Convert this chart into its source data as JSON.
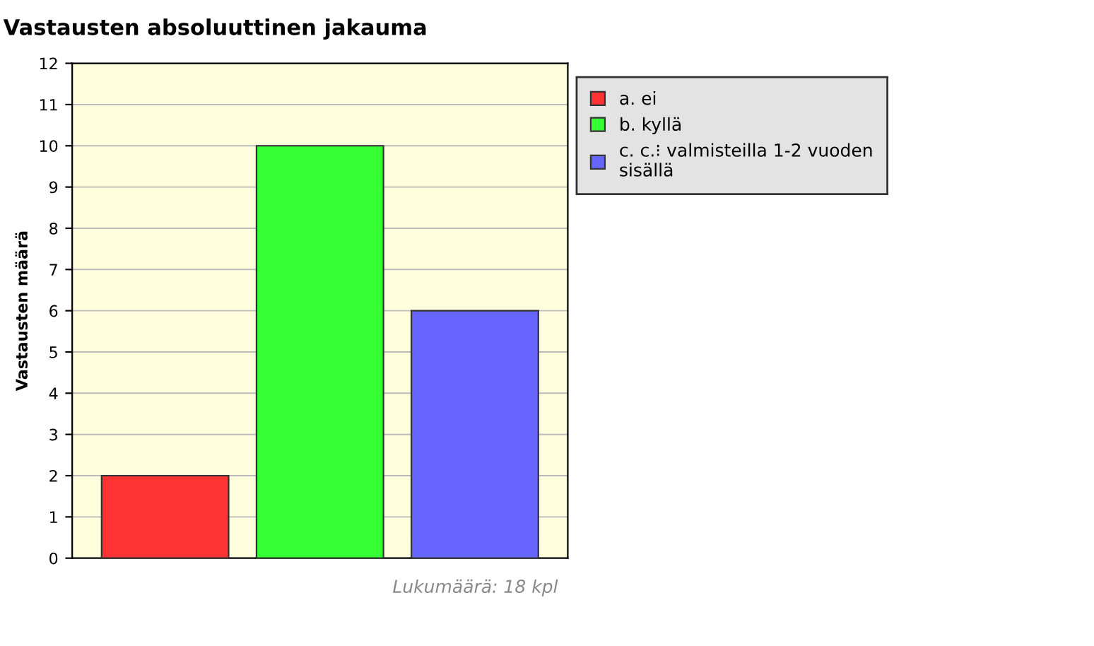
{
  "chart_data": {
    "type": "bar",
    "title": "Vastausten absoluuttinen jakauma",
    "ylabel": "Vastausten määrä",
    "categories": [
      null,
      null,
      null
    ],
    "series": [
      {
        "name": "a. ei",
        "color": "#ff3333",
        "values": [
          2,
          null,
          null
        ]
      },
      {
        "name": "b. kyllä",
        "color": "#33ff33",
        "values": [
          null,
          10,
          null
        ]
      },
      {
        "name": "c. c.⁝ valmisteilla 1-2 vuoden sisällä",
        "color": "#6666ff",
        "values": [
          null,
          null,
          6
        ]
      }
    ],
    "ylim": [
      0,
      12
    ],
    "yticks": [
      0,
      1,
      2,
      3,
      4,
      5,
      6,
      7,
      8,
      9,
      10,
      11,
      12
    ],
    "grid": "y",
    "legend": "top right",
    "annotations": [
      "Lukumäärä: 18 kpl"
    ]
  }
}
